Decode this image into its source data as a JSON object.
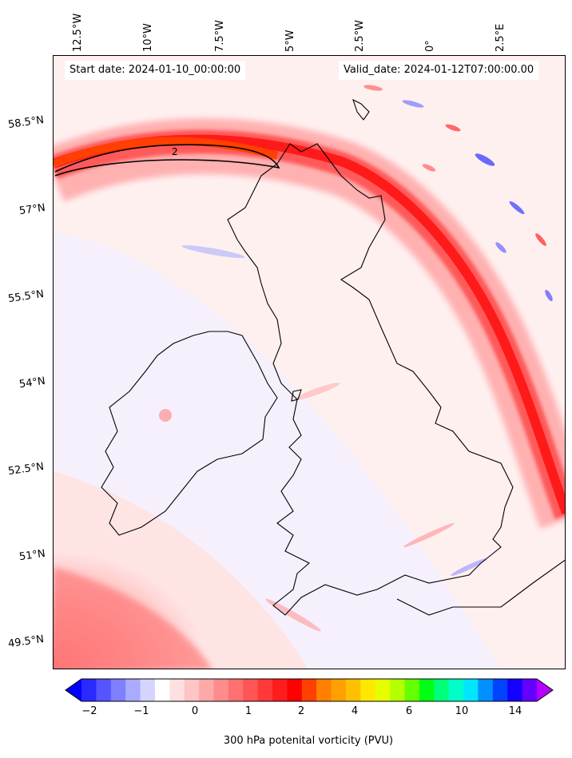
{
  "map": {
    "start_label": "Start date: 2024-01-10_00:00:00",
    "valid_label": "Valid_date: 2024-01-12T07:00:00.00",
    "contour_label": "2",
    "lon_labels": [
      "12.5°W",
      "10°W",
      "7.5°W",
      "5°W",
      "2.5°W",
      "0°",
      "2.5°E"
    ],
    "lat_labels": [
      "58.5°N",
      "57°N",
      "55.5°N",
      "54°N",
      "52.5°N",
      "51°N",
      "49.5°N"
    ]
  },
  "colorbar": {
    "label": "300 hPa potenital vorticity (PVU)",
    "ticks": [
      "−2",
      "−1",
      "0",
      "1",
      "2",
      "4",
      "6",
      "10",
      "14"
    ],
    "colors": [
      "#0000ff",
      "#2a2aff",
      "#5555ff",
      "#7f7fff",
      "#aaaaff",
      "#d4d4ff",
      "#ffffff",
      "#ffe0e0",
      "#ffc4c4",
      "#ffa8a8",
      "#ff8c8c",
      "#ff7070",
      "#ff5555",
      "#ff3838",
      "#ff1c1c",
      "#ff0000",
      "#ff4000",
      "#ff8000",
      "#ffa000",
      "#ffc000",
      "#ffe800",
      "#e6ff00",
      "#b4ff00",
      "#64ff00",
      "#00ff14",
      "#00ff7a",
      "#00ffc8",
      "#00e6ff",
      "#0090ff",
      "#0044ff",
      "#1400ff",
      "#6400ff",
      "#b400ff"
    ]
  }
}
